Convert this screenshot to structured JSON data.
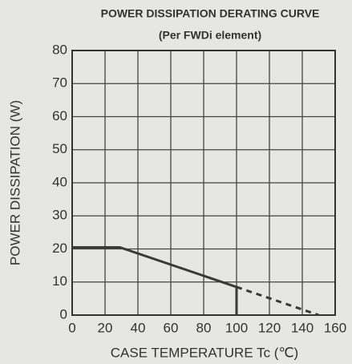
{
  "chart_data": {
    "type": "line",
    "title": "POWER DISSIPATION DERATING CURVE",
    "subtitle": "(Per FWDi element)",
    "x_label": "CASE TEMPERATURE Tc (℃)",
    "y_label": "POWER DISSIPATION (W)",
    "xlim": [
      0,
      160
    ],
    "xticks": [
      0,
      20,
      40,
      60,
      80,
      100,
      120,
      140,
      160
    ],
    "ylim": [
      0,
      80
    ],
    "yticks": [
      0,
      10,
      20,
      30,
      40,
      50,
      60,
      70,
      80
    ],
    "grid": true,
    "series": [
      {
        "color": "#3a3a3a",
        "style": "solid",
        "x": [
          0,
          29,
          100,
          100
        ],
        "values": [
          20.5,
          20.5,
          8.5,
          0
        ]
      },
      {
        "color": "#3a3a3a",
        "style": "dashed",
        "x": [
          100,
          150
        ],
        "values": [
          8.5,
          0
        ]
      }
    ]
  }
}
